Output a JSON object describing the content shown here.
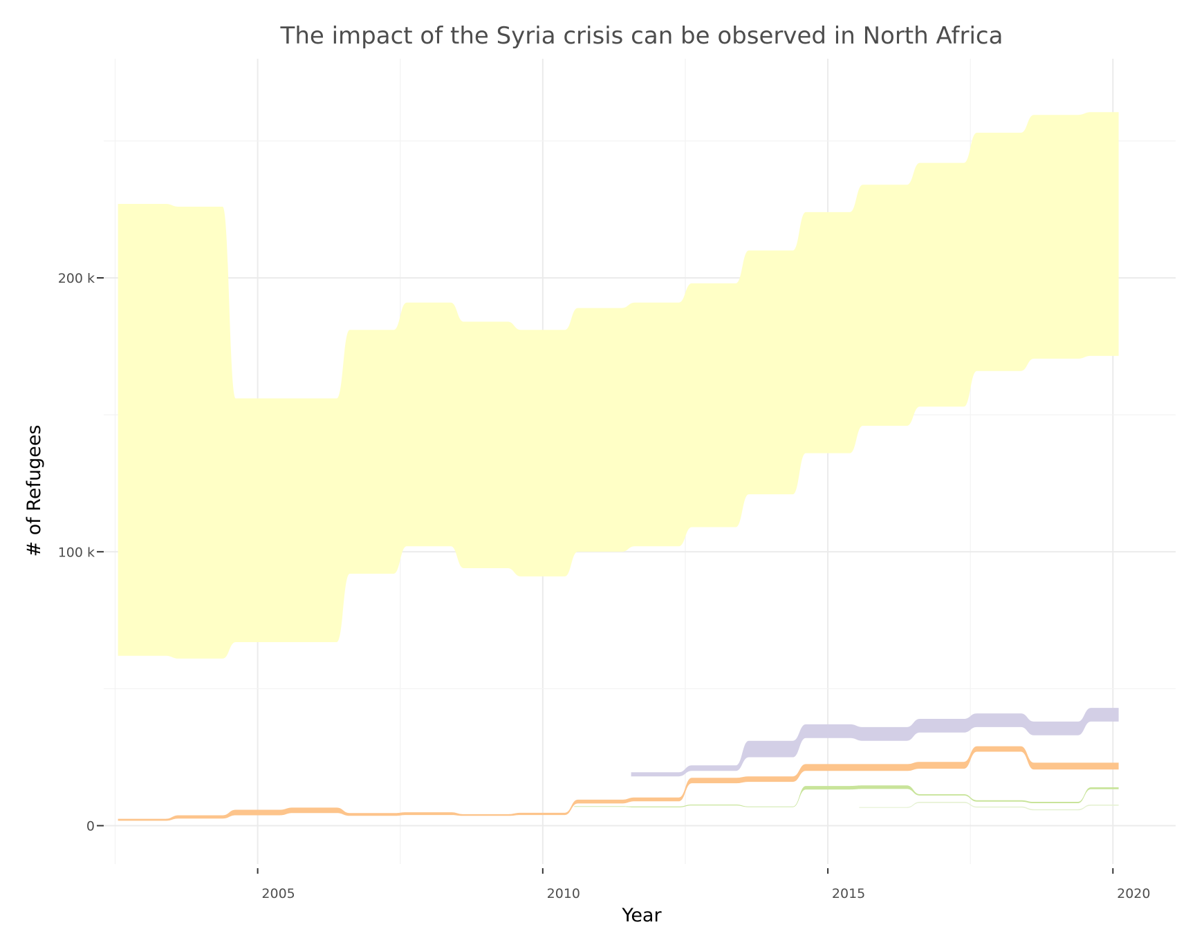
{
  "chart_data": {
    "type": "area",
    "subtype": "streamgraph",
    "title": "The impact of the Syria crisis can be observed in North Africa",
    "xlabel": "Year",
    "ylabel": "# of Refugees",
    "x_ticks": [
      2005,
      2010,
      2015,
      2020
    ],
    "x_tick_labels": [
      "2005",
      "2010",
      "2015",
      "2020"
    ],
    "y_ticks": [
      0,
      100000,
      200000
    ],
    "y_tick_labels": [
      "0",
      "100 k",
      "200 k"
    ],
    "xlim": [
      2002.3,
      2021.1
    ],
    "ylim": [
      -14000,
      280000
    ],
    "grid": true,
    "legend": "none",
    "x": [
      2003,
      2004,
      2005,
      2006,
      2007,
      2008,
      2009,
      2010,
      2011,
      2012,
      2013,
      2014,
      2015,
      2016,
      2017,
      2018,
      2019,
      2020
    ],
    "series": [
      {
        "color": "#ffffc6",
        "lower": [
          62000,
          61000,
          67000,
          67000,
          92000,
          102000,
          94000,
          91000,
          100000,
          102000,
          109000,
          121000,
          136000,
          146000,
          153000,
          166000,
          170500,
          171500
        ],
        "upper": [
          227000,
          226000,
          156000,
          156000,
          181000,
          191000,
          184000,
          181000,
          189000,
          191000,
          198000,
          210000,
          224000,
          234000,
          242000,
          253000,
          259500,
          260500
        ]
      },
      {
        "color": "#d3cfe6",
        "lower": [
          null,
          null,
          null,
          null,
          null,
          null,
          null,
          null,
          null,
          18000,
          20000,
          25000,
          32000,
          31000,
          34000,
          36000,
          33000,
          38000
        ],
        "upper": [
          null,
          null,
          null,
          null,
          null,
          null,
          null,
          null,
          null,
          19500,
          22000,
          31000,
          37000,
          36000,
          39000,
          41000,
          38000,
          43000
        ]
      },
      {
        "color": "#fdc48b",
        "lower": [
          1800,
          2600,
          3800,
          4600,
          3600,
          3900,
          3600,
          3900,
          8100,
          8900,
          15500,
          16000,
          20000,
          20000,
          20800,
          27000,
          20500,
          20500
        ],
        "upper": [
          2500,
          3800,
          5800,
          6600,
          4600,
          4900,
          4200,
          4700,
          9500,
          10300,
          17500,
          18000,
          22500,
          22500,
          23300,
          29000,
          23000,
          23000
        ]
      },
      {
        "color": "#c8e49a",
        "lower": [
          null,
          null,
          null,
          null,
          null,
          null,
          null,
          null,
          6900,
          6700,
          7400,
          6800,
          13200,
          13400,
          11000,
          8800,
          8200,
          13300
        ],
        "upper": [
          null,
          null,
          null,
          null,
          null,
          null,
          null,
          null,
          7100,
          7000,
          7700,
          7000,
          14500,
          14700,
          11500,
          9300,
          8700,
          14000
        ]
      },
      {
        "color": "#e5f1d2",
        "lower": [
          null,
          null,
          null,
          null,
          null,
          null,
          null,
          null,
          null,
          null,
          null,
          null,
          null,
          6500,
          8300,
          6600,
          5600,
          7300
        ],
        "upper": [
          null,
          null,
          null,
          null,
          null,
          null,
          null,
          null,
          null,
          null,
          null,
          null,
          null,
          6800,
          8700,
          7000,
          6000,
          7700
        ]
      }
    ]
  }
}
